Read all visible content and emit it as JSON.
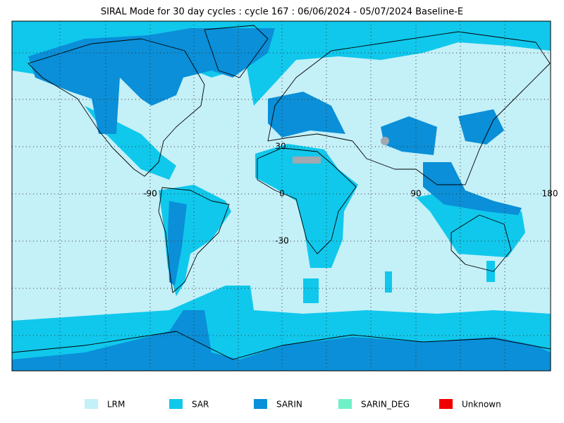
{
  "map": {
    "title": "SIRAL Mode for 30 day cycles : cycle 167 : 06/06/2024 - 05/07/2024 Baseline-E",
    "grid_labels": {
      "lat_30": "30",
      "lon_m90": "-90",
      "lon_0": "0",
      "lon_90": "90",
      "lon_180": "180",
      "lat_m30": "-30"
    },
    "legend": [
      {
        "label": "LRM",
        "color": "#c4f0f8"
      },
      {
        "label": "SAR",
        "color": "#10c8ec"
      },
      {
        "label": "SARIN",
        "color": "#0a8fd8"
      },
      {
        "label": "SARIN_DEG",
        "color": "#70f0c8"
      },
      {
        "label": "Unknown",
        "color": "#f00000"
      }
    ]
  }
}
